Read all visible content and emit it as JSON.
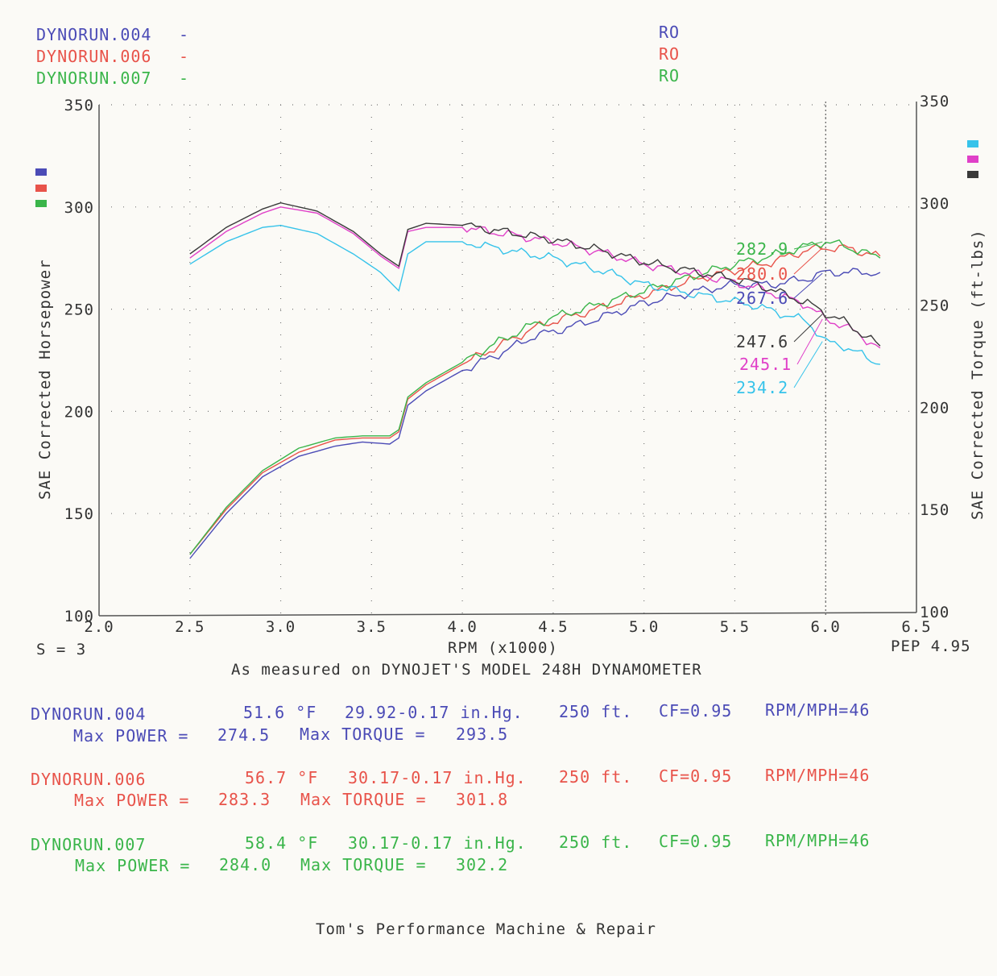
{
  "colors": {
    "run004": "#4b4bb6",
    "run006": "#e8534a",
    "run007": "#3ab54a",
    "cyan": "#36c3ea",
    "magenta": "#e040c8",
    "black": "#3a3a3a",
    "axis": "#555555",
    "text": "#333333"
  },
  "legend": {
    "runs": [
      {
        "name": "DYNORUN.004",
        "dash": "-",
        "ro": "RO",
        "color": "run004"
      },
      {
        "name": "DYNORUN.006",
        "dash": "-",
        "ro": "RO",
        "color": "run006"
      },
      {
        "name": "DYNORUN.007",
        "dash": "-",
        "ro": "RO",
        "color": "run007"
      }
    ]
  },
  "axes": {
    "left_label": "SAE Corrected Horsepower",
    "right_label": "SAE Corrected Torque (ft-lbs)",
    "xlabel": "RPM (x1000)",
    "smoothing": "S = 3",
    "version": "PEP 4.95",
    "subtitle": "As measured on DYNOJET'S MODEL 248H DYNAMOMETER"
  },
  "footer": "Tom's Performance Machine & Repair",
  "runs_info": [
    {
      "name": "DYNORUN.004",
      "temp": "51.6 °F",
      "baro": "29.92-0.17 in.Hg.",
      "elev": "250 ft.",
      "cf": "CF=0.95",
      "ratio": "RPM/MPH=46",
      "max_power_label": "Max POWER =",
      "max_power": "274.5",
      "max_torque_label": "Max TORQUE =",
      "max_torque": "293.5",
      "color": "run004"
    },
    {
      "name": "DYNORUN.006",
      "temp": "56.7 °F",
      "baro": "30.17-0.17 in.Hg.",
      "elev": "250 ft.",
      "cf": "CF=0.95",
      "ratio": "RPM/MPH=46",
      "max_power_label": "Max POWER =",
      "max_power": "283.3",
      "max_torque_label": "Max TORQUE =",
      "max_torque": "301.8",
      "color": "run006"
    },
    {
      "name": "DYNORUN.007",
      "temp": "58.4 °F",
      "baro": "30.17-0.17 in.Hg.",
      "elev": "250 ft.",
      "cf": "CF=0.95",
      "ratio": "RPM/MPH=46",
      "max_power_label": "Max POWER =",
      "max_power": "284.0",
      "max_torque_label": "Max TORQUE =",
      "max_torque": "302.2",
      "color": "run007"
    }
  ],
  "chart_data": {
    "type": "line",
    "xlabel": "RPM (x1000)",
    "ylabel_left": "SAE Corrected Horsepower",
    "ylabel_right": "SAE Corrected Torque (ft-lbs)",
    "xlim": [
      2.0,
      6.5
    ],
    "ylim": [
      100,
      350
    ],
    "x_ticks": [
      "2.0",
      "2.5",
      "3.0",
      "3.5",
      "4.0",
      "4.5",
      "5.0",
      "5.5",
      "6.0",
      "6.5"
    ],
    "y_ticks_left": [
      "100",
      "150",
      "200",
      "250",
      "300",
      "350"
    ],
    "y_ticks_right": [
      "100",
      "150",
      "200",
      "250",
      "300",
      "350"
    ],
    "grid": "dotted",
    "cursor_rpm": 6.0,
    "series": [
      {
        "name": "DYNORUN.004",
        "kind": "power",
        "color": "run004",
        "x": [
          2.5,
          2.7,
          2.9,
          3.1,
          3.3,
          3.45,
          3.6,
          3.65,
          3.7,
          3.8,
          4.0,
          4.2,
          4.4,
          4.5,
          4.7,
          5.0,
          5.3,
          5.5,
          5.7,
          5.9,
          6.0,
          6.1,
          6.3
        ],
        "y": [
          128,
          150,
          168,
          178,
          183,
          185,
          184,
          187,
          203,
          210,
          220,
          228,
          237,
          239,
          244,
          253,
          259,
          262,
          262,
          265,
          268,
          268,
          268
        ]
      },
      {
        "name": "DYNORUN.006",
        "kind": "power",
        "color": "run006",
        "x": [
          2.5,
          2.7,
          2.9,
          3.1,
          3.3,
          3.45,
          3.6,
          3.65,
          3.7,
          3.8,
          4.0,
          4.2,
          4.4,
          4.5,
          4.7,
          5.0,
          5.3,
          5.5,
          5.7,
          5.9,
          6.0,
          6.1,
          6.3
        ],
        "y": [
          130,
          152,
          170,
          180,
          186,
          187,
          187,
          190,
          206,
          213,
          223,
          232,
          241,
          244,
          249,
          257,
          265,
          269,
          273,
          279,
          280,
          280,
          276
        ]
      },
      {
        "name": "DYNORUN.007",
        "kind": "power",
        "color": "run007",
        "x": [
          2.5,
          2.7,
          2.9,
          3.1,
          3.3,
          3.45,
          3.6,
          3.65,
          3.7,
          3.8,
          4.0,
          4.2,
          4.4,
          4.5,
          4.7,
          5.0,
          5.3,
          5.5,
          5.7,
          5.9,
          6.0,
          6.1,
          6.3
        ],
        "y": [
          130,
          153,
          171,
          182,
          187,
          188,
          188,
          191,
          207,
          214,
          224,
          234,
          243,
          246,
          251,
          259,
          267,
          272,
          276,
          281,
          283,
          281,
          275
        ]
      },
      {
        "name": "DYNORUN.004",
        "kind": "torque",
        "color": "cyan",
        "x": [
          2.5,
          2.7,
          2.9,
          3.0,
          3.2,
          3.4,
          3.55,
          3.65,
          3.7,
          3.8,
          4.0,
          4.3,
          4.5,
          4.8,
          5.0,
          5.3,
          5.6,
          5.9,
          6.0,
          6.1,
          6.3
        ],
        "y": [
          272,
          283,
          290,
          291,
          287,
          277,
          268,
          259,
          277,
          283,
          283,
          278,
          275,
          268,
          262,
          257,
          252,
          244,
          234,
          232,
          223
        ]
      },
      {
        "name": "DYNORUN.006",
        "kind": "torque",
        "color": "magenta",
        "x": [
          2.5,
          2.7,
          2.9,
          3.0,
          3.2,
          3.4,
          3.55,
          3.65,
          3.7,
          3.8,
          4.0,
          4.3,
          4.5,
          4.8,
          5.0,
          5.3,
          5.6,
          5.9,
          6.0,
          6.1,
          6.3
        ],
        "y": [
          275,
          288,
          297,
          300,
          297,
          287,
          276,
          270,
          288,
          290,
          290,
          286,
          283,
          277,
          272,
          267,
          261,
          252,
          245,
          242,
          231
        ]
      },
      {
        "name": "DYNORUN.007",
        "kind": "torque",
        "color": "black",
        "x": [
          2.5,
          2.7,
          2.9,
          3.0,
          3.2,
          3.4,
          3.55,
          3.65,
          3.7,
          3.8,
          4.0,
          4.3,
          4.5,
          4.8,
          5.0,
          5.3,
          5.6,
          5.9,
          6.0,
          6.1,
          6.3
        ],
        "y": [
          277,
          290,
          299,
          302,
          298,
          288,
          277,
          271,
          289,
          292,
          291,
          287,
          284,
          278,
          273,
          268,
          263,
          253,
          248,
          244,
          232
        ]
      }
    ],
    "cursor_labels": [
      {
        "text": "282.9",
        "color": "run007"
      },
      {
        "text": "280.0",
        "color": "run006"
      },
      {
        "text": "267.6",
        "color": "run004"
      },
      {
        "text": "247.6",
        "color": "black"
      },
      {
        "text": "245.1",
        "color": "magenta"
      },
      {
        "text": "234.2",
        "color": "cyan"
      }
    ]
  }
}
